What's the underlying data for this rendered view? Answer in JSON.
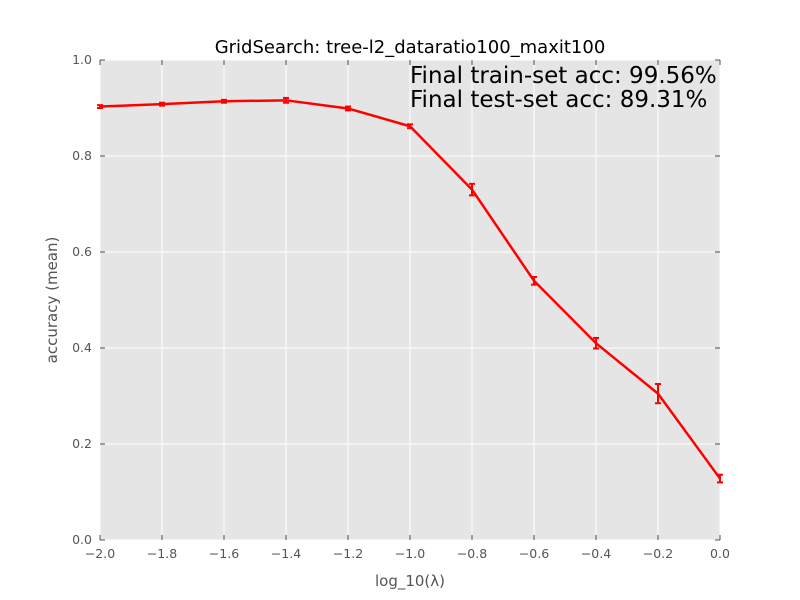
{
  "chart_data": {
    "type": "line",
    "title": "GridSearch: tree-l2_dataratio100_maxit100",
    "xlabel": "log_10(λ)",
    "ylabel": "accuracy (mean)",
    "xlim": [
      -2.0,
      0.0
    ],
    "ylim": [
      0.0,
      1.0
    ],
    "x_ticks": [
      -2.0,
      -1.8,
      -1.6,
      -1.4,
      -1.2,
      -1.0,
      -0.8,
      -0.6,
      -0.4,
      -0.2,
      0.0
    ],
    "x_tick_labels": [
      "−2.0",
      "−1.8",
      "−1.6",
      "−1.4",
      "−1.2",
      "−1.0",
      "−0.8",
      "−0.6",
      "−0.4",
      "−0.2",
      "0.0"
    ],
    "y_ticks": [
      0.0,
      0.2,
      0.4,
      0.6,
      0.8,
      1.0
    ],
    "y_tick_labels": [
      "0.0",
      "0.2",
      "0.4",
      "0.6",
      "0.8",
      "1.0"
    ],
    "grid": true,
    "series": [
      {
        "color": "#ff0000",
        "x": [
          -2.0,
          -1.8,
          -1.6,
          -1.4,
          -1.2,
          -1.0,
          -0.8,
          -0.6,
          -0.4,
          -0.2,
          0.0
        ],
        "y": [
          0.903,
          0.908,
          0.914,
          0.916,
          0.899,
          0.862,
          0.73,
          0.54,
          0.41,
          0.305,
          0.128
        ],
        "err": [
          0.003,
          0.003,
          0.003,
          0.005,
          0.004,
          0.004,
          0.012,
          0.008,
          0.011,
          0.02,
          0.008
        ]
      }
    ],
    "annotations": [
      "Final train-set acc: 99.56%",
      "Final test-set acc: 89.31%"
    ],
    "colors": {
      "plot_background": "#e5e5e5",
      "grid": "#ffffff",
      "line": "#ff0000"
    }
  }
}
